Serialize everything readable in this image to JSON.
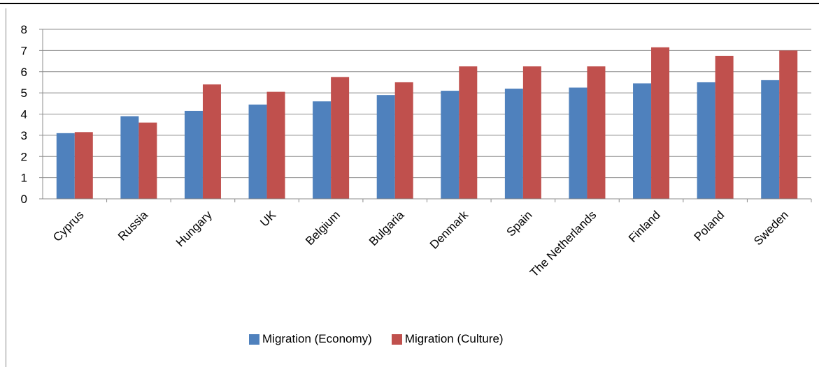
{
  "chart_data": {
    "type": "bar",
    "categories": [
      "Cyprus",
      "Russia",
      "Hungary",
      "UK",
      "Belgium",
      "Bulgaria",
      "Denmark",
      "Spain",
      "The Netherlands",
      "Finland",
      "Poland",
      "Sweden"
    ],
    "series": [
      {
        "name": "Migration (Economy)",
        "color": "#4f81bd",
        "values": [
          3.1,
          3.9,
          4.15,
          4.45,
          4.6,
          4.9,
          5.1,
          5.2,
          5.25,
          5.45,
          5.5,
          5.6
        ]
      },
      {
        "name": "Migration (Culture)",
        "color": "#c0504d",
        "values": [
          3.15,
          3.6,
          5.4,
          5.05,
          5.75,
          5.5,
          6.25,
          6.25,
          6.25,
          7.15,
          6.75,
          7.0
        ]
      }
    ],
    "ylim": [
      0,
      8
    ],
    "yticks": [
      "0",
      "1",
      "2",
      "3",
      "4",
      "5",
      "6",
      "7",
      "8"
    ],
    "grid": true,
    "legend_position": "bottom"
  }
}
